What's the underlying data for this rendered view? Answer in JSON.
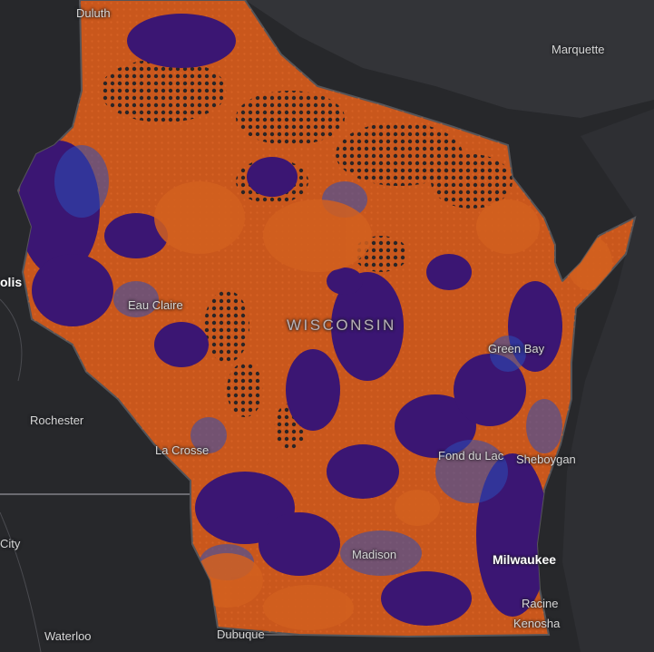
{
  "map": {
    "state_label": "WISCONSIN",
    "colors": {
      "background": "#27282b",
      "water": "#333438",
      "orange": "#c9571c",
      "purple": "#3b1673",
      "blue": "#2c4fb8",
      "dark": "#2a2a2e",
      "border": "#555559"
    },
    "cities": {
      "duluth": "Duluth",
      "marquette": "Marquette",
      "minneapolis_partial": "olis",
      "eau_claire": "Eau Claire",
      "green_bay": "Green Bay",
      "rochester": "Rochester",
      "la_crosse": "La Crosse",
      "fond_du_lac": "Fond du Lac",
      "sheboygan": "Sheboygan",
      "city_partial": "City",
      "madison": "Madison",
      "milwaukee": "Milwaukee",
      "racine": "Racine",
      "kenosha": "Kenosha",
      "waterloo": "Waterloo",
      "dubuque": "Dubuque"
    }
  }
}
